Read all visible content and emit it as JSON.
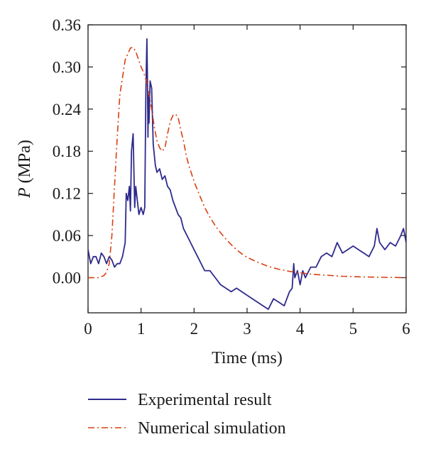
{
  "chart_data": {
    "type": "line",
    "xlabel": "Time (ms)",
    "ylabel_italic": "P",
    "ylabel_rest": " (MPa)",
    "xlim": [
      0,
      6
    ],
    "ylim": [
      -0.05,
      0.36
    ],
    "x_ticks": [
      0,
      1,
      2,
      3,
      4,
      5,
      6
    ],
    "x_tick_labels": [
      "0",
      "1",
      "2",
      "3",
      "4",
      "5",
      "6"
    ],
    "y_ticks": [
      0.0,
      0.06,
      0.12,
      0.18,
      0.24,
      0.3,
      0.36
    ],
    "y_tick_labels": [
      "0.00",
      "0.06",
      "0.12",
      "0.18",
      "0.24",
      "0.30",
      "0.36"
    ],
    "grid": false,
    "legend_position": "bottom",
    "series": [
      {
        "name": "Experimental result",
        "color": "#2e2a8c",
        "style": "solid",
        "x": [
          0,
          0.05,
          0.1,
          0.15,
          0.2,
          0.25,
          0.3,
          0.35,
          0.4,
          0.45,
          0.5,
          0.55,
          0.6,
          0.65,
          0.7,
          0.72,
          0.75,
          0.78,
          0.8,
          0.82,
          0.85,
          0.88,
          0.9,
          0.93,
          0.96,
          1.0,
          1.04,
          1.07,
          1.09,
          1.1,
          1.11,
          1.12,
          1.13,
          1.14,
          1.15,
          1.17,
          1.2,
          1.23,
          1.27,
          1.3,
          1.35,
          1.4,
          1.45,
          1.5,
          1.55,
          1.6,
          1.65,
          1.7,
          1.75,
          1.8,
          1.9,
          2.0,
          2.1,
          2.2,
          2.3,
          2.4,
          2.5,
          2.6,
          2.7,
          2.8,
          2.9,
          3.0,
          3.1,
          3.2,
          3.3,
          3.4,
          3.5,
          3.6,
          3.7,
          3.75,
          3.8,
          3.85,
          3.88,
          3.9,
          3.95,
          4.0,
          4.05,
          4.1,
          4.2,
          4.3,
          4.4,
          4.5,
          4.6,
          4.7,
          4.8,
          4.9,
          5.0,
          5.1,
          5.2,
          5.3,
          5.4,
          5.45,
          5.5,
          5.6,
          5.7,
          5.8,
          5.9,
          5.95,
          6.0
        ],
        "values": [
          0.04,
          0.02,
          0.03,
          0.03,
          0.02,
          0.035,
          0.03,
          0.02,
          0.03,
          0.025,
          0.015,
          0.02,
          0.02,
          0.03,
          0.05,
          0.12,
          0.11,
          0.13,
          0.095,
          0.18,
          0.205,
          0.1,
          0.13,
          0.11,
          0.09,
          0.1,
          0.09,
          0.1,
          0.26,
          0.3,
          0.34,
          0.29,
          0.2,
          0.26,
          0.22,
          0.28,
          0.27,
          0.19,
          0.16,
          0.15,
          0.155,
          0.14,
          0.145,
          0.13,
          0.125,
          0.11,
          0.1,
          0.09,
          0.085,
          0.07,
          0.055,
          0.04,
          0.025,
          0.01,
          0.01,
          0.0,
          -0.01,
          -0.015,
          -0.02,
          -0.015,
          -0.02,
          -0.025,
          -0.03,
          -0.035,
          -0.04,
          -0.045,
          -0.03,
          -0.035,
          -0.04,
          -0.03,
          -0.02,
          -0.015,
          0.02,
          0.0,
          0.01,
          -0.01,
          0.01,
          0.0,
          0.015,
          0.015,
          0.03,
          0.035,
          0.03,
          0.05,
          0.035,
          0.04,
          0.045,
          0.04,
          0.035,
          0.03,
          0.045,
          0.07,
          0.05,
          0.04,
          0.05,
          0.045,
          0.06,
          0.07,
          0.05
        ]
      },
      {
        "name": "Numerical simulation",
        "color": "#d94010",
        "style": "dash-dot",
        "x": [
          0,
          0.2,
          0.3,
          0.35,
          0.4,
          0.45,
          0.5,
          0.55,
          0.6,
          0.7,
          0.8,
          0.85,
          0.9,
          1.0,
          1.05,
          1.1,
          1.15,
          1.2,
          1.25,
          1.3,
          1.35,
          1.4,
          1.45,
          1.5,
          1.55,
          1.6,
          1.65,
          1.7,
          1.75,
          1.8,
          1.85,
          1.9,
          2.0,
          2.1,
          2.2,
          2.3,
          2.4,
          2.5,
          2.6,
          2.7,
          2.8,
          2.9,
          3.0,
          3.2,
          3.4,
          3.6,
          3.8,
          4.0,
          4.2,
          4.4,
          4.6,
          4.8,
          5.0,
          5.2,
          5.4,
          5.6,
          5.8,
          6.0
        ],
        "values": [
          0.0,
          0.0,
          0.003,
          0.008,
          0.02,
          0.06,
          0.13,
          0.2,
          0.26,
          0.31,
          0.327,
          0.328,
          0.322,
          0.3,
          0.292,
          0.28,
          0.262,
          0.24,
          0.215,
          0.195,
          0.185,
          0.18,
          0.185,
          0.205,
          0.222,
          0.231,
          0.233,
          0.228,
          0.21,
          0.195,
          0.175,
          0.16,
          0.137,
          0.118,
          0.1,
          0.086,
          0.074,
          0.064,
          0.055,
          0.047,
          0.04,
          0.034,
          0.029,
          0.022,
          0.016,
          0.012,
          0.009,
          0.007,
          0.005,
          0.004,
          0.003,
          0.002,
          0.0015,
          0.001,
          0.0008,
          0.0005,
          0.0003,
          0.0
        ]
      }
    ]
  },
  "legend": {
    "items": [
      {
        "label": "Experimental result",
        "color": "#2e2a8c",
        "style": "solid"
      },
      {
        "label": "Numerical simulation",
        "color": "#d94010",
        "style": "dash-dot"
      }
    ]
  }
}
